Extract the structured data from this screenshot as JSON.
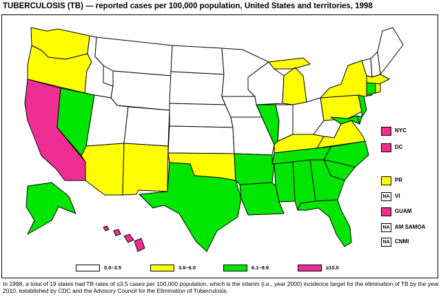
{
  "title": "TUBERCULOSIS (TB) — reported cases per 100,000 population, United States and territories, 1998",
  "colors": {
    "low": "#ffffff",
    "mid_low": "#ffff00",
    "mid_high": "#00e600",
    "high": "#ee2e92",
    "outline": "#000000"
  },
  "map": {
    "rate_classes": {
      "0.0-3.5": [
        "ME",
        "VT",
        "NH",
        "MT",
        "ID",
        "WY",
        "ND",
        "SD",
        "NE",
        "KS",
        "CO",
        "UT",
        "MN",
        "WI",
        "IA",
        "MO",
        "OH",
        "WV",
        "IN"
      ],
      "3.6-6.0": [
        "WA",
        "OR",
        "AZ",
        "NM",
        "OK",
        "MI",
        "KY",
        "PA",
        "NY",
        "VA",
        "MA",
        "RI"
      ],
      "6.1-9.9": [
        "NV",
        "TX",
        "AR",
        "LA",
        "MS",
        "AL",
        "GA",
        "FL",
        "SC",
        "NC",
        "TN",
        "IL",
        "NJ",
        "DE",
        "MD",
        "CT",
        "AK"
      ],
      ">=10.0": [
        "CA",
        "HI"
      ]
    }
  },
  "side_legend": [
    {
      "label": "NYC",
      "badge": "",
      "class": "high"
    },
    {
      "label": "DC",
      "badge": "",
      "class": "high"
    },
    {
      "label": "PR",
      "badge": "",
      "class": "mid_low"
    },
    {
      "label": "VI",
      "badge": "NA",
      "class": "none"
    },
    {
      "label": "GUAM",
      "badge": "",
      "class": "high"
    },
    {
      "label": "AM SAMOA",
      "badge": "NA",
      "class": "none"
    },
    {
      "label": "CNMI",
      "badge": "NA",
      "class": "none"
    }
  ],
  "legend": [
    {
      "label": "0.0–3.5",
      "class": "low"
    },
    {
      "label": "3.6–6.0",
      "class": "mid_low"
    },
    {
      "label": "6.1–9.9",
      "class": "mid_high"
    },
    {
      "label": "≥10.0",
      "class": "high"
    }
  ],
  "footnote": "In 1998, a total of 19 states had TB rates of ≤3.5 cases per 100,000 population, which is the interim (i.e., year 2000) incidence target for the elimination of TB by the year 2010, established by CDC and the Advisory Council for the Elimination of Tuberculosis."
}
